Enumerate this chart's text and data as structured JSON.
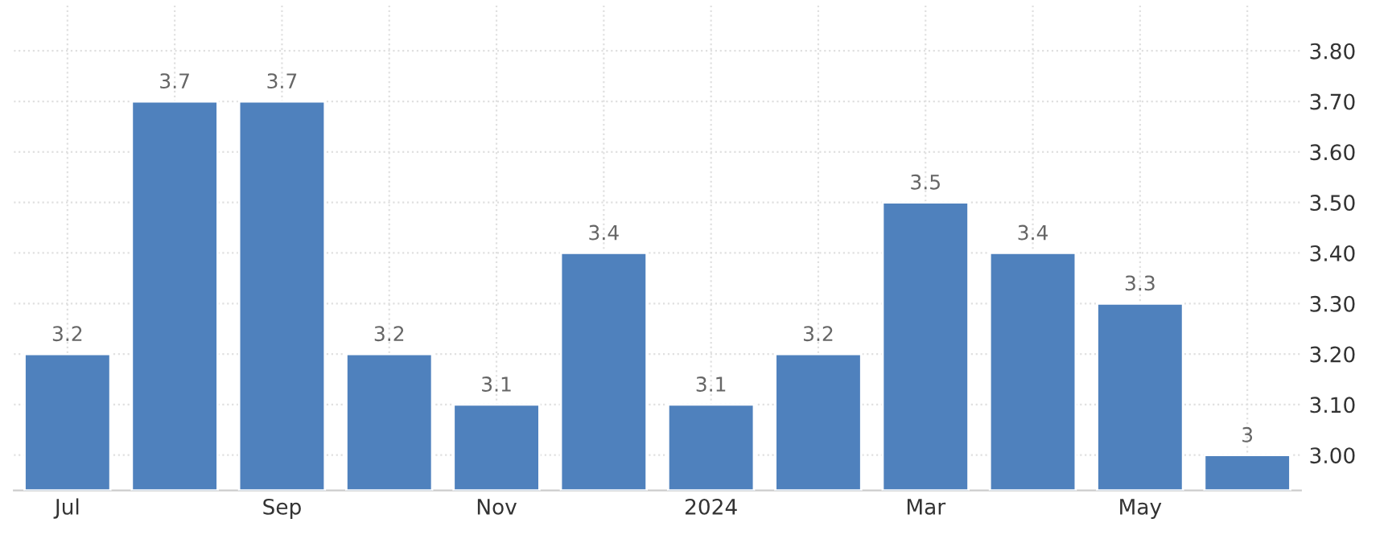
{
  "chart_data": {
    "type": "bar",
    "categories": [
      "Jul",
      null,
      "Sep",
      null,
      "Nov",
      null,
      "2024",
      null,
      "Mar",
      null,
      "May",
      null
    ],
    "values": [
      3.2,
      3.7,
      3.7,
      3.2,
      3.1,
      3.4,
      3.1,
      3.2,
      3.5,
      3.4,
      3.3,
      3.0
    ],
    "value_labels": [
      "3.2",
      "3.7",
      "3.7",
      "3.2",
      "3.1",
      "3.4",
      "3.1",
      "3.2",
      "3.5",
      "3.4",
      "3.3",
      "3"
    ],
    "color": "#4f81bd",
    "ylim": [
      2.93,
      3.89
    ],
    "yticks": [
      {
        "value": 3.0,
        "label": "3.00"
      },
      {
        "value": 3.1,
        "label": "3.10"
      },
      {
        "value": 3.2,
        "label": "3.20"
      },
      {
        "value": 3.3,
        "label": "3.30"
      },
      {
        "value": 3.4,
        "label": "3.40"
      },
      {
        "value": 3.5,
        "label": "3.50"
      },
      {
        "value": 3.6,
        "label": "3.60"
      },
      {
        "value": 3.7,
        "label": "3.70"
      },
      {
        "value": 3.8,
        "label": "3.80"
      }
    ],
    "grid": true
  }
}
